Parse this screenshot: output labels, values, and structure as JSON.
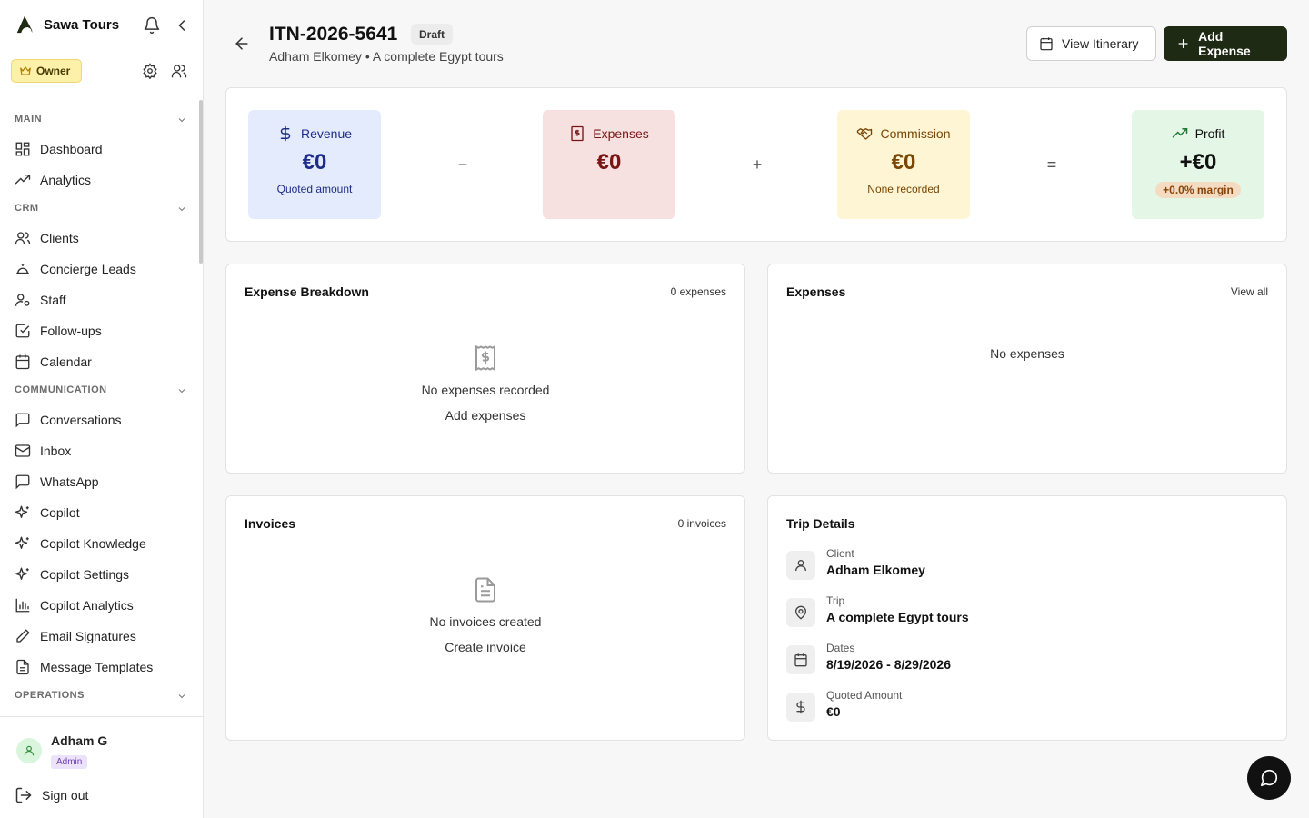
{
  "app": {
    "name": "Sawa Tours"
  },
  "sidebar": {
    "owner_label": "Owner",
    "sections": [
      {
        "label": "MAIN",
        "items": [
          {
            "label": "Dashboard",
            "icon": "dashboard-icon"
          },
          {
            "label": "Analytics",
            "icon": "trending-up-icon"
          }
        ]
      },
      {
        "label": "CRM",
        "items": [
          {
            "label": "Clients",
            "icon": "users-icon"
          },
          {
            "label": "Concierge Leads",
            "icon": "concierge-bell-icon"
          },
          {
            "label": "Staff",
            "icon": "user-cog-icon"
          },
          {
            "label": "Follow-ups",
            "icon": "check-square-icon"
          },
          {
            "label": "Calendar",
            "icon": "calendar-icon"
          }
        ]
      },
      {
        "label": "COMMUNICATION",
        "items": [
          {
            "label": "Conversations",
            "icon": "message-square-icon"
          },
          {
            "label": "Inbox",
            "icon": "mail-icon"
          },
          {
            "label": "WhatsApp",
            "icon": "whatsapp-icon"
          },
          {
            "label": "Copilot",
            "icon": "sparkles-icon"
          },
          {
            "label": "Copilot Knowledge",
            "icon": "sparkles-icon"
          },
          {
            "label": "Copilot Settings",
            "icon": "sparkles-icon"
          },
          {
            "label": "Copilot Analytics",
            "icon": "bar-chart-icon"
          },
          {
            "label": "Email Signatures",
            "icon": "pen-icon"
          },
          {
            "label": "Message Templates",
            "icon": "file-text-icon"
          }
        ]
      },
      {
        "label": "OPERATIONS",
        "items": []
      }
    ],
    "user": {
      "name": "Adham G",
      "role": "Admin"
    },
    "signout_label": "Sign out"
  },
  "header": {
    "title": "ITN-2026-5641",
    "status": "Draft",
    "subtitle": "Adham Elkomey • A complete Egypt tours",
    "view_itinerary_label": "View Itinerary",
    "add_expense_label": "Add Expense"
  },
  "summary": {
    "revenue": {
      "label": "Revenue",
      "value": "€0",
      "note": "Quoted amount"
    },
    "minus": "−",
    "expenses": {
      "label": "Expenses",
      "value": "€0"
    },
    "plus": "+",
    "commission": {
      "label": "Commission",
      "value": "€0",
      "note": "None recorded"
    },
    "equals": "=",
    "profit": {
      "label": "Profit",
      "value": "+€0",
      "margin": "+0.0% margin"
    }
  },
  "expense_breakdown": {
    "title": "Expense Breakdown",
    "count": "0 expenses",
    "empty_text": "No expenses recorded",
    "empty_action": "Add expenses"
  },
  "expenses_panel": {
    "title": "Expenses",
    "view_all": "View all",
    "empty_text": "No expenses"
  },
  "invoices": {
    "title": "Invoices",
    "count": "0 invoices",
    "empty_text": "No invoices created",
    "empty_action": "Create invoice"
  },
  "trip_details": {
    "title": "Trip Details",
    "rows": [
      {
        "label": "Client",
        "value": "Adham Elkomey",
        "icon": "user-icon"
      },
      {
        "label": "Trip",
        "value": "A complete Egypt tours",
        "icon": "map-pin-icon"
      },
      {
        "label": "Dates",
        "value": "8/19/2026 - 8/29/2026",
        "icon": "calendar-icon"
      },
      {
        "label": "Quoted Amount",
        "value": "€0",
        "icon": "dollar-icon"
      }
    ]
  },
  "colors": {
    "primary_button": "#1e2a13",
    "revenue_bg": "#e4ebfc",
    "expenses_bg": "#f6e0e0",
    "commission_bg": "#fdf5d3",
    "profit_bg": "#e4f6e6"
  }
}
